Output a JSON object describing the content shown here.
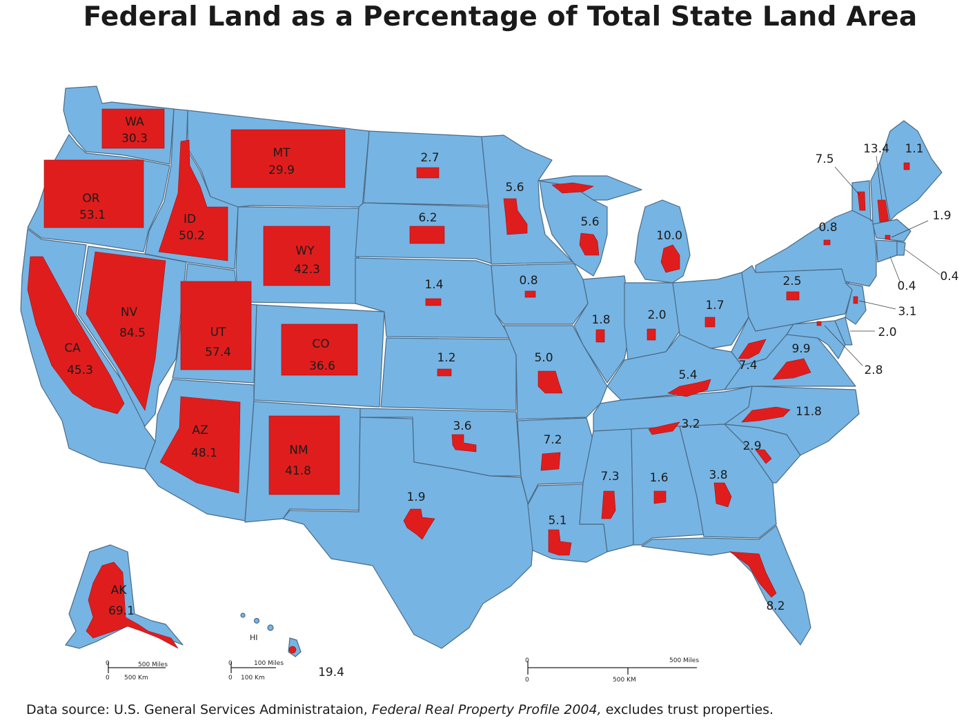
{
  "title": "Federal Land as a Percentage of Total State Land Area",
  "footer": {
    "prefix": "Data source: U.S. General Services Administrataion,",
    "publication": "Federal Real Property Profile 2004,",
    "suffix": "excludes trust properties."
  },
  "colors": {
    "land": "#76b4e3",
    "federal": "#e01d1d",
    "border": "#4a6a85"
  },
  "labeled_states": [
    {
      "abbr": "WA",
      "value": "30.3"
    },
    {
      "abbr": "OR",
      "value": "53.1"
    },
    {
      "abbr": "ID",
      "value": "50.2"
    },
    {
      "abbr": "MT",
      "value": "29.9"
    },
    {
      "abbr": "WY",
      "value": "42.3"
    },
    {
      "abbr": "NV",
      "value": "84.5"
    },
    {
      "abbr": "CA",
      "value": "45.3"
    },
    {
      "abbr": "UT",
      "value": "57.4"
    },
    {
      "abbr": "CO",
      "value": "36.6"
    },
    {
      "abbr": "AZ",
      "value": "48.1"
    },
    {
      "abbr": "NM",
      "value": "41.8"
    },
    {
      "abbr": "AK",
      "value": "69.1"
    }
  ],
  "state_values": {
    "ND": "2.7",
    "SD": "6.2",
    "NE": "1.4",
    "KS": "1.2",
    "OK": "3.6",
    "TX": "1.9",
    "MN": "5.6",
    "IA": "0.8",
    "MO": "5.0",
    "AR": "7.2",
    "LA": "5.1",
    "WI": "5.6",
    "IL": "1.8",
    "MI": "10.0",
    "IN": "2.0",
    "OH": "1.7",
    "KY": "5.4",
    "TN": "3.2",
    "MS": "7.3",
    "AL": "1.6",
    "GA": "3.8",
    "FL": "8.2",
    "SC": "2.9",
    "NC": "11.8",
    "VA": "9.9",
    "WV": "7.4",
    "PA": "2.5",
    "NY": "0.8",
    "VT": "7.5",
    "NH": "13.4",
    "ME": "1.1",
    "MA": "1.9",
    "RI": "0.4",
    "CT": "0.4",
    "NJ": "3.1",
    "DE": "2.0",
    "MD": "2.8",
    "HI": "19.4"
  },
  "hawaii_label": "HI",
  "scales": {
    "alaska": {
      "miles": "500 Miles",
      "km": "500 Km",
      "zero": "0"
    },
    "hawaii": {
      "miles": "100 Miles",
      "km": "100 Km",
      "zero": "0"
    },
    "main": {
      "miles": "500 Miles",
      "km": "500 KM",
      "zero": "0"
    }
  }
}
